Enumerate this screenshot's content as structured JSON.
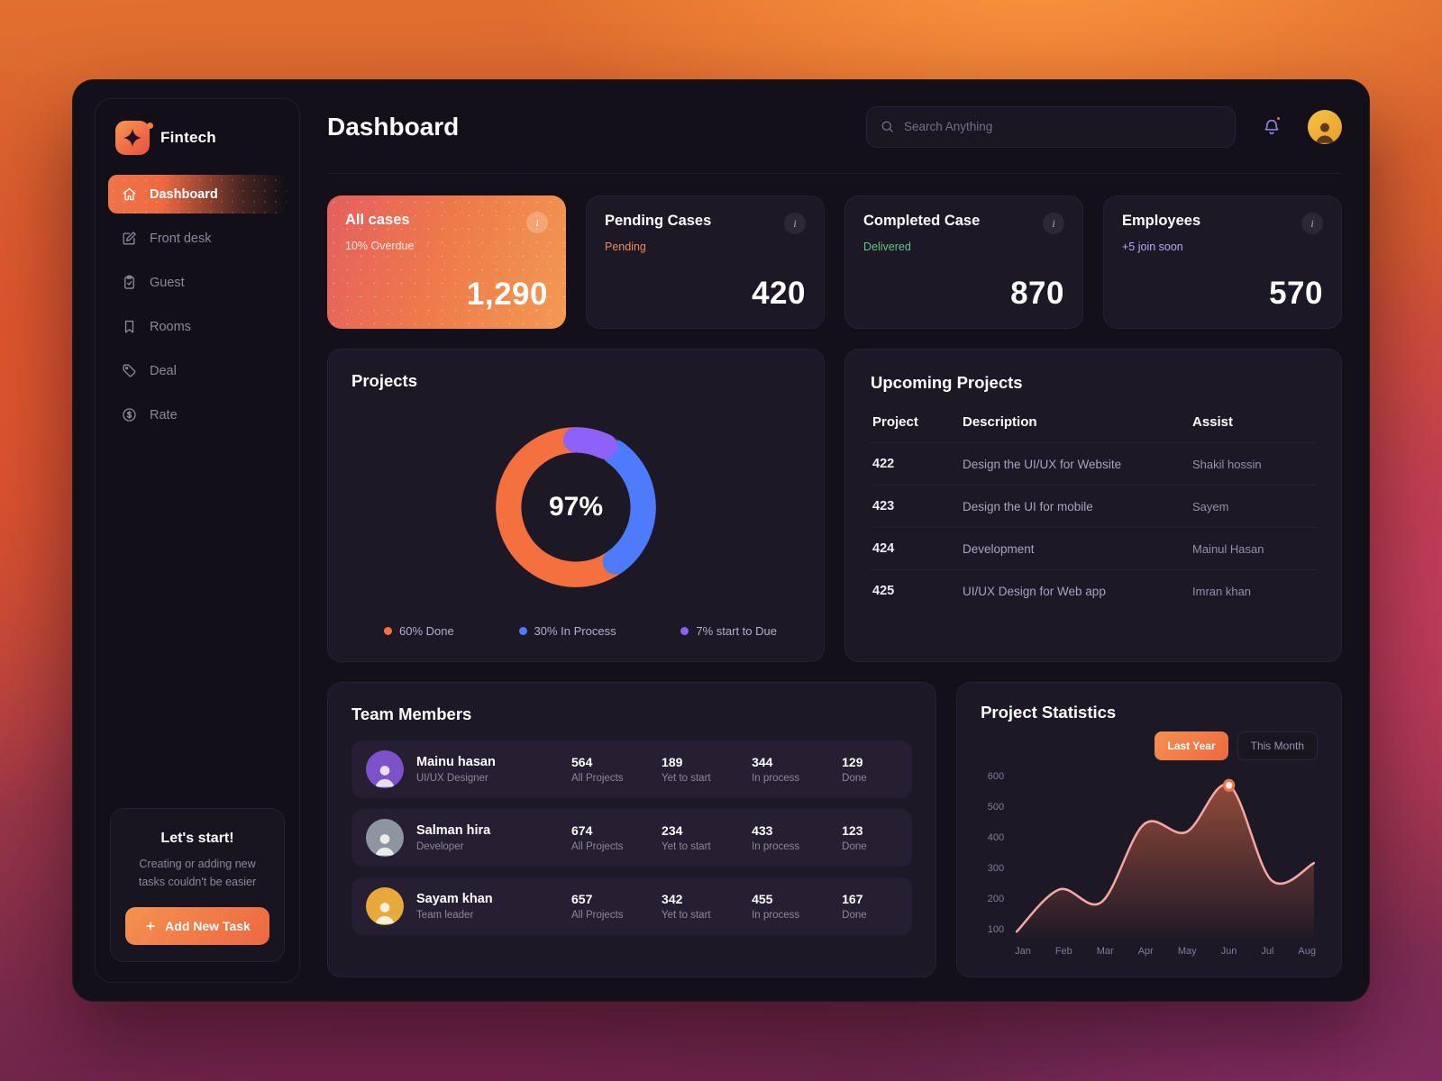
{
  "app": {
    "brand": "Fintech"
  },
  "header": {
    "title": "Dashboard",
    "search_placeholder": "Search Anything",
    "notification_unread": true
  },
  "sidebar": {
    "nav": [
      {
        "label": "Dashboard",
        "icon": "home-icon",
        "active": true
      },
      {
        "label": "Front desk",
        "icon": "edit-icon",
        "active": false
      },
      {
        "label": "Guest",
        "icon": "clipboard-icon",
        "active": false
      },
      {
        "label": "Rooms",
        "icon": "bookmark-icon",
        "active": false
      },
      {
        "label": "Deal",
        "icon": "tag-icon",
        "active": false
      },
      {
        "label": "Rate",
        "icon": "dollar-icon",
        "active": false
      }
    ],
    "cta": {
      "title": "Let's start!",
      "subtitle": "Creating or adding new tasks couldn't be easier",
      "button_label": "Add New Task"
    }
  },
  "stat_cards": [
    {
      "title": "All cases",
      "subtitle": "10% Overdue",
      "value": "1,290",
      "highlight": true,
      "subtitle_color": "#ffe9df"
    },
    {
      "title": "Pending Cases",
      "subtitle": "Pending",
      "value": "420",
      "highlight": false,
      "subtitle_color": "#ef8a55"
    },
    {
      "title": "Completed Case",
      "subtitle": "Delivered",
      "value": "870",
      "highlight": false,
      "subtitle_color": "#5fc686"
    },
    {
      "title": "Employees",
      "subtitle": "+5 join soon",
      "value": "570",
      "highlight": false,
      "subtitle_color": "#b2abf5"
    }
  ],
  "projects": {
    "title": "Projects"
  },
  "upcoming": {
    "title": "Upcoming Projects",
    "columns": [
      "Project",
      "Description",
      "Assist"
    ],
    "rows": [
      {
        "project": "422",
        "description": "Design the UI/UX for Website",
        "assist": "Shakil hossin"
      },
      {
        "project": "423",
        "description": "Design the UI for mobile",
        "assist": "Sayem"
      },
      {
        "project": "424",
        "description": "Development",
        "assist": "Mainul Hasan"
      },
      {
        "project": "425",
        "description": "UI/UX Design for Web app",
        "assist": "Imran khan"
      }
    ]
  },
  "team": {
    "title": "Team Members",
    "stat_labels": {
      "all": "All Projects",
      "yet": "Yet to start",
      "process": "In process",
      "done": "Done"
    },
    "members": [
      {
        "name": "Mainu hasan",
        "role": "UI/UX Designer",
        "all_projects": "564",
        "yet_to_start": "189",
        "in_process": "344",
        "done": "129",
        "avatar_color": "#7c52c9"
      },
      {
        "name": "Salman hira",
        "role": "Developer",
        "all_projects": "674",
        "yet_to_start": "234",
        "in_process": "433",
        "done": "123",
        "avatar_color": "#8d969e"
      },
      {
        "name": "Sayam khan",
        "role": "Team leader",
        "all_projects": "657",
        "yet_to_start": "342",
        "in_process": "455",
        "done": "167",
        "avatar_color": "#e8a93c"
      }
    ]
  },
  "statistics": {
    "title": "Project Statistics",
    "range_buttons": [
      {
        "label": "Last Year",
        "active": true
      },
      {
        "label": "This Month",
        "active": false
      }
    ]
  },
  "chart_data": [
    {
      "type": "donut",
      "title": "Projects",
      "center_label": "97%",
      "track_color": "#342e42",
      "segments": [
        {
          "label": "60% Done",
          "value": 60,
          "start_percent": 40,
          "color": "#f4703f"
        },
        {
          "label": "30% In Process",
          "value": 30,
          "start_percent": 10,
          "color": "#4e7bfb"
        },
        {
          "label": "7% start to Due",
          "value": 7,
          "start_percent": 0,
          "color": "#8e62f7"
        }
      ]
    },
    {
      "type": "area",
      "title": "Project Statistics",
      "x": [
        "Jan",
        "Feb",
        "Mar",
        "Apr",
        "May",
        "Jun",
        "Jul",
        "Aug"
      ],
      "values": [
        110,
        245,
        205,
        455,
        430,
        580,
        275,
        330
      ],
      "ylim": [
        100,
        600
      ],
      "yticks": [
        600,
        500,
        400,
        300,
        200,
        100
      ],
      "marker": {
        "x": "Jun",
        "value": 580
      },
      "line_color": "#f3a8a4",
      "fill_color": "#f2734a",
      "grid": false,
      "legend_position": "none"
    }
  ],
  "colors": {
    "accent_orange": "#ee6a44",
    "status_pending": "#ef8a55",
    "status_delivered": "#5fc686",
    "status_join": "#b2abf5"
  },
  "icons": {
    "logo": "sparkle-icon",
    "search": "search-icon",
    "notifications": "bell-icon",
    "add_task": "plus-icon",
    "card_info": "info-icon"
  }
}
